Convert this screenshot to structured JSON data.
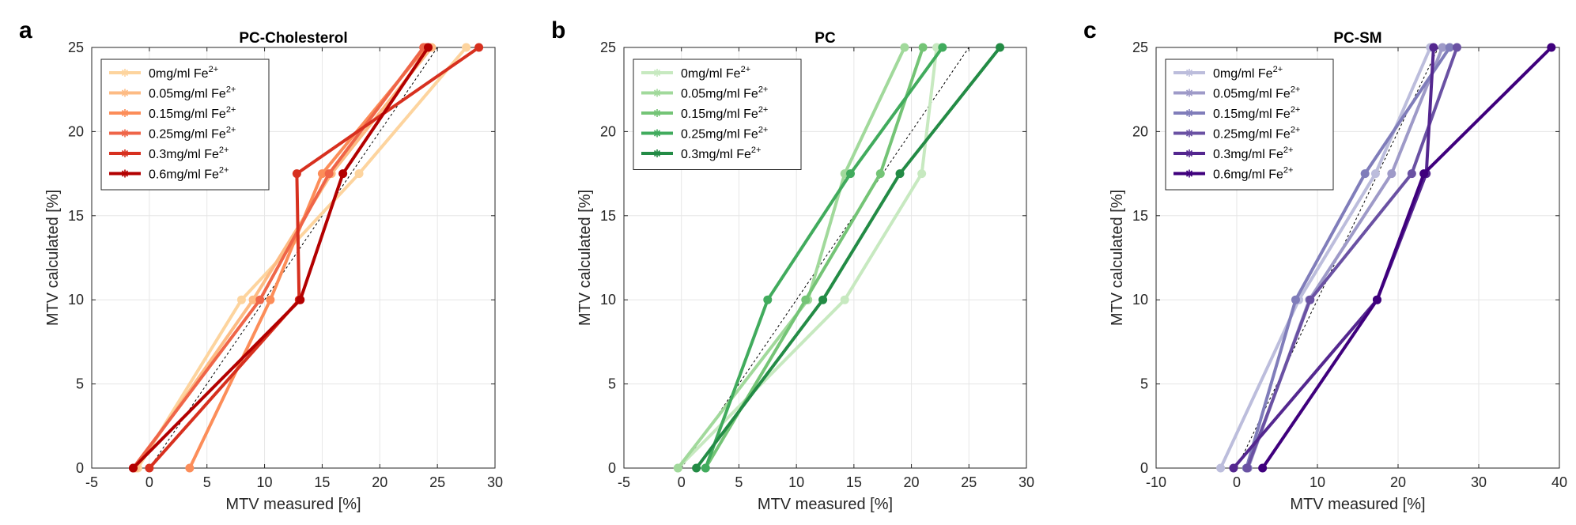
{
  "chart_data": [
    {
      "type": "line",
      "panel_letter": "a",
      "title": "PC-Cholesterol",
      "xlabel": "MTV measured [%]",
      "ylabel": "MTV calculated [%]",
      "xlim": [
        -5,
        30
      ],
      "ylim": [
        0,
        25
      ],
      "xticks": [
        "-5",
        "0",
        "5",
        "10",
        "15",
        "20",
        "25",
        "30"
      ],
      "yticks": [
        "0",
        "5",
        "10",
        "15",
        "20",
        "25"
      ],
      "grid": true,
      "legend_position": "top-left",
      "identity_line": true,
      "series": [
        {
          "name": "0mg/ml Fe",
          "sup": "2+",
          "color": "#fdd49e",
          "points": [
            [
              -1,
              0
            ],
            [
              8,
              10
            ],
            [
              18.2,
              17.5
            ],
            [
              27.5,
              25
            ]
          ]
        },
        {
          "name": "0.05mg/ml Fe",
          "sup": "2+",
          "color": "#fdbb84",
          "points": [
            [
              -1.2,
              0
            ],
            [
              9,
              10
            ],
            [
              15.8,
              17.5
            ],
            [
              24.5,
              25
            ]
          ]
        },
        {
          "name": "0.15mg/ml Fe",
          "sup": "2+",
          "color": "#fc8d59",
          "points": [
            [
              3.5,
              0
            ],
            [
              10.5,
              10
            ],
            [
              15,
              17.5
            ],
            [
              24,
              25
            ]
          ]
        },
        {
          "name": "0.25mg/ml Fe",
          "sup": "2+",
          "color": "#ef6548",
          "points": [
            [
              -1.4,
              0
            ],
            [
              9.6,
              10
            ],
            [
              15.6,
              17.5
            ],
            [
              23.8,
              25
            ]
          ]
        },
        {
          "name": "0.3mg/ml Fe",
          "sup": "2+",
          "color": "#d7301f",
          "points": [
            [
              0,
              0
            ],
            [
              13,
              10
            ],
            [
              12.8,
              17.5
            ],
            [
              28.6,
              25
            ]
          ]
        },
        {
          "name": "0.6mg/ml Fe",
          "sup": "2+",
          "color": "#b30000",
          "points": [
            [
              -1.4,
              0
            ],
            [
              13.1,
              10
            ],
            [
              16.8,
              17.5
            ],
            [
              24.2,
              25
            ]
          ]
        }
      ]
    },
    {
      "type": "line",
      "panel_letter": "b",
      "title": "PC",
      "xlabel": "MTV measured [%]",
      "ylabel": "MTV calculated [%]",
      "xlim": [
        -5,
        30
      ],
      "ylim": [
        0,
        25
      ],
      "xticks": [
        "-5",
        "0",
        "5",
        "10",
        "15",
        "20",
        "25",
        "30"
      ],
      "yticks": [
        "0",
        "5",
        "10",
        "15",
        "20",
        "25"
      ],
      "grid": true,
      "legend_position": "top-left",
      "identity_line": true,
      "series": [
        {
          "name": "0mg/ml Fe",
          "sup": "2+",
          "color": "#c7e9c0",
          "points": [
            [
              -0.3,
              0
            ],
            [
              14.2,
              10
            ],
            [
              20.9,
              17.5
            ],
            [
              22.2,
              25
            ]
          ]
        },
        {
          "name": "0.05mg/ml Fe",
          "sup": "2+",
          "color": "#a1d99b",
          "points": [
            [
              -0.3,
              0
            ],
            [
              11,
              10
            ],
            [
              14.2,
              17.5
            ],
            [
              19.4,
              25
            ]
          ]
        },
        {
          "name": "0.15mg/ml Fe",
          "sup": "2+",
          "color": "#74c476",
          "points": [
            [
              2.1,
              0
            ],
            [
              10.8,
              10
            ],
            [
              17.3,
              17.5
            ],
            [
              21,
              25
            ]
          ]
        },
        {
          "name": "0.25mg/ml Fe",
          "sup": "2+",
          "color": "#41ab5d",
          "points": [
            [
              2.1,
              0
            ],
            [
              7.5,
              10
            ],
            [
              14.7,
              17.5
            ],
            [
              22.7,
              25
            ]
          ]
        },
        {
          "name": "0.3mg/ml Fe",
          "sup": "2+",
          "color": "#238b45",
          "points": [
            [
              1.3,
              0
            ],
            [
              12.3,
              10
            ],
            [
              19,
              17.5
            ],
            [
              27.7,
              25
            ]
          ]
        }
      ]
    },
    {
      "type": "line",
      "panel_letter": "c",
      "title": "PC-SM",
      "xlabel": "MTV measured [%]",
      "ylabel": "MTV calculated [%]",
      "xlim": [
        -10,
        40
      ],
      "ylim": [
        0,
        25
      ],
      "xticks": [
        "-10",
        "0",
        "10",
        "20",
        "30",
        "40"
      ],
      "yticks": [
        "0",
        "5",
        "10",
        "15",
        "20",
        "25"
      ],
      "grid": true,
      "legend_position": "top-left",
      "identity_line": true,
      "series": [
        {
          "name": "0mg/ml Fe",
          "sup": "2+",
          "color": "#bcbddc",
          "points": [
            [
              -2,
              0
            ],
            [
              7.7,
              10
            ],
            [
              17.2,
              17.5
            ],
            [
              24,
              25
            ]
          ]
        },
        {
          "name": "0.05mg/ml Fe",
          "sup": "2+",
          "color": "#9e9ac8",
          "points": [
            [
              1.4,
              0
            ],
            [
              9,
              10
            ],
            [
              19.2,
              17.5
            ],
            [
              25.5,
              25
            ]
          ]
        },
        {
          "name": "0.15mg/ml Fe",
          "sup": "2+",
          "color": "#807dba",
          "points": [
            [
              1.2,
              0
            ],
            [
              7.3,
              10
            ],
            [
              15.9,
              17.5
            ],
            [
              26.4,
              25
            ]
          ]
        },
        {
          "name": "0.25mg/ml Fe",
          "sup": "2+",
          "color": "#6a51a3",
          "points": [
            [
              1.3,
              0
            ],
            [
              9.1,
              10
            ],
            [
              21.7,
              17.5
            ],
            [
              27.3,
              25
            ]
          ]
        },
        {
          "name": "0.3mg/ml Fe",
          "sup": "2+",
          "color": "#54278f",
          "points": [
            [
              -0.4,
              0
            ],
            [
              17.4,
              10
            ],
            [
              23.5,
              17.5
            ],
            [
              24.4,
              25
            ]
          ]
        },
        {
          "name": "0.6mg/ml Fe",
          "sup": "2+",
          "color": "#3f007d",
          "points": [
            [
              3.2,
              0
            ],
            [
              17.4,
              10
            ],
            [
              23.2,
              17.5
            ],
            [
              39,
              25
            ]
          ]
        }
      ]
    }
  ]
}
